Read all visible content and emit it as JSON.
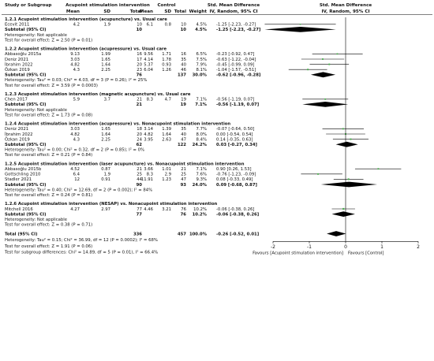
{
  "chart_data": {
    "type": "forest",
    "header": {
      "col_study": "Study or Subgroup",
      "group1": "Acupoint stimulation intervention",
      "group2": "Control",
      "mean": "Mean",
      "sd": "SD",
      "total": "Total",
      "weight": "Weight",
      "effect_title": "Std. Mean Difference",
      "effect_method": "IV, Random, 95% CI",
      "plot_title": "Std. Mean Difference",
      "plot_method": "IV, Random, 95% CI"
    },
    "subgroups": [
      {
        "title": "1.2.1 Acupoint stimulation intervention (acupuncture) vs. Usual care",
        "studies": [
          {
            "name": "Ecevit 2011",
            "m1": "4.2",
            "sd1": "1.9",
            "n1": "10",
            "m2": "6.1",
            "sd2": "0.8",
            "n2": "10",
            "weight": "4.5%",
            "ci": "-1.25 [-2.23, -0.27]",
            "est": -1.25,
            "lo": -2.23,
            "hi": -0.27,
            "w": 4.5
          }
        ],
        "subtotal": {
          "label": "Subtotal (95% CI)",
          "n1": "10",
          "n2": "10",
          "weight": "4.5%",
          "ci": "-1.25 [-2.23, -0.27]",
          "est": -1.25,
          "lo": -2.23,
          "hi": -0.27
        },
        "heterogeneity": "Heterogeneity: Not applicable",
        "overall": "Test for overall effect: Z = 2.50 (P = 0.01)"
      },
      {
        "title": "1.2.2 Acupoint stimulation intervention (acupressure) vs. Usual care",
        "studies": [
          {
            "name": "Abbasoğlu 2015a",
            "m1": "9.13",
            "sd1": "1.99",
            "n1": "16",
            "m2": "9.56",
            "sd2": "1.71",
            "n2": "16",
            "weight": "6.5%",
            "ci": "-0.23 [-0.92, 0.47]",
            "est": -0.23,
            "lo": -0.92,
            "hi": 0.47,
            "w": 6.5
          },
          {
            "name": "Deniz 2021",
            "m1": "3.03",
            "sd1": "1.65",
            "n1": "17",
            "m2": "4.14",
            "sd2": "1.78",
            "n2": "35",
            "weight": "7.5%",
            "ci": "-0.63 [-1.22, -0.04]",
            "est": -0.63,
            "lo": -1.22,
            "hi": -0.04,
            "w": 7.5
          },
          {
            "name": "İbrahim 2022",
            "m1": "4.82",
            "sd1": "1.64",
            "n1": "20",
            "m2": "5.37",
            "sd2": "0.93",
            "n2": "40",
            "weight": "7.9%",
            "ci": "-0.45 [-0.99, 0.09]",
            "est": -0.45,
            "lo": -0.99,
            "hi": 0.09,
            "w": 7.9
          },
          {
            "name": "Özkan 2019",
            "m1": "4.3",
            "sd1": "2.25",
            "n1": "23",
            "m2": "6.04",
            "sd2": "1.26",
            "n2": "46",
            "weight": "8.1%",
            "ci": "-1.04 [-1.57, -0.51]",
            "est": -1.04,
            "lo": -1.57,
            "hi": -0.51,
            "w": 8.1
          }
        ],
        "subtotal": {
          "label": "Subtotal (95% CI)",
          "n1": "76",
          "n2": "137",
          "weight": "30.0%",
          "ci": "-0.62 [-0.96, -0.28]",
          "est": -0.62,
          "lo": -0.96,
          "hi": -0.28
        },
        "heterogeneity": "Heterogeneity: Tau² = 0.03; Chi² = 4.03, df = 3 (P = 0.26); I² = 25%",
        "overall": "Test for overall effect: Z = 3.59 (P = 0.0003)"
      },
      {
        "title": "1.2.3 Acupoint stimulation intervention (magnetic acupuncture) vs. Usual care",
        "studies": [
          {
            "name": "Chen 2017",
            "m1": "5.9",
            "sd1": "3.7",
            "n1": "21",
            "m2": "8.3",
            "sd2": "4.7",
            "n2": "19",
            "weight": "7.1%",
            "ci": "-0.56 [-1.19, 0.07]",
            "est": -0.56,
            "lo": -1.19,
            "hi": 0.07,
            "w": 7.1
          }
        ],
        "subtotal": {
          "label": "Subtotal (95% CI)",
          "n1": "21",
          "n2": "19",
          "weight": "7.1%",
          "ci": "-0.56 [-1.19, 0.07]",
          "est": -0.56,
          "lo": -1.19,
          "hi": 0.07
        },
        "heterogeneity": "Heterogeneity: Not applicable",
        "overall": "Test for overall effect: Z = 1.73 (P = 0.08)"
      },
      {
        "title": "1.2.4 Acupoint stimulation intervention (acupressure) vs. Nonacupoint stimulation intervention",
        "studies": [
          {
            "name": "Deniz 2021",
            "m1": "3.03",
            "sd1": "1.65",
            "n1": "18",
            "m2": "3.14",
            "sd2": "1.39",
            "n2": "35",
            "weight": "7.7%",
            "ci": "-0.07 [-0.64, 0.50]",
            "est": -0.07,
            "lo": -0.64,
            "hi": 0.5,
            "w": 7.7
          },
          {
            "name": "İbrahim 2022",
            "m1": "4.82",
            "sd1": "1.64",
            "n1": "20",
            "m2": "4.82",
            "sd2": "1.64",
            "n2": "40",
            "weight": "8.0%",
            "ci": "0.00 [-0.54, 0.54]",
            "est": 0.0,
            "lo": -0.54,
            "hi": 0.54,
            "w": 8.0
          },
          {
            "name": "Özkan 2019",
            "m1": "4.3",
            "sd1": "2.25",
            "n1": "24",
            "m2": "3.95",
            "sd2": "2.63",
            "n2": "47",
            "weight": "8.4%",
            "ci": "0.14 [-0.35, 0.63]",
            "est": 0.14,
            "lo": -0.35,
            "hi": 0.63,
            "w": 8.4
          }
        ],
        "subtotal": {
          "label": "Subtotal (95% CI)",
          "n1": "62",
          "n2": "122",
          "weight": "24.2%",
          "ci": "0.03 [-0.27, 0.34]",
          "est": 0.03,
          "lo": -0.27,
          "hi": 0.34
        },
        "heterogeneity": "Heterogeneity: Tau² = 0.00; Chi² = 0.32, df = 2 (P = 0.85); I² = 0%",
        "overall": "Test for overall effect: Z = 0.21 (P = 0.84)"
      },
      {
        "title": "1.2.5 Acupoint stimulation intervention (laser acupuncture) vs. Nonacupoint stimulation intervention",
        "studies": [
          {
            "name": "Abbasoğlu 2015b",
            "m1": "4.52",
            "sd1": "0.87",
            "n1": "21",
            "m2": "3.66",
            "sd2": "1.01",
            "n2": "21",
            "weight": "7.1%",
            "ci": "0.90 [0.26, 1.53]",
            "est": 0.9,
            "lo": 0.26,
            "hi": 1.53,
            "w": 7.1
          },
          {
            "name": "Gottschling 2010",
            "m1": "6.4",
            "sd1": "1.9",
            "n1": "25",
            "m2": "8.3",
            "sd2": "2.9",
            "n2": "25",
            "weight": "7.6%",
            "ci": "-0.76 [-1.23, -0.09]",
            "est": -0.76,
            "lo": -1.23,
            "hi": -0.09,
            "w": 7.6
          },
          {
            "name": "Stadler 2021",
            "m1": "12",
            "sd1": "0.91",
            "n1": "44",
            "m2": "11.91",
            "sd2": "1.23",
            "n2": "47",
            "weight": "9.3%",
            "ci": "0.08 [-0.33, 0.49]",
            "est": 0.08,
            "lo": -0.33,
            "hi": 0.49,
            "w": 9.3
          }
        ],
        "subtotal": {
          "label": "Subtotal (95% CI)",
          "n1": "90",
          "n2": "93",
          "weight": "24.0%",
          "ci": "0.09 [-0.68, 0.87]",
          "est": 0.09,
          "lo": -0.68,
          "hi": 0.87
        },
        "heterogeneity": "Heterogeneity: Tau² = 0.40; Chi² = 12.69, df = 2 (P = 0.002); I² = 84%",
        "overall": "Test for overall effect: Z = 0.24 (P = 0.81)"
      },
      {
        "title": "1.2.6 Acupoint stimulation intervention (NESAP) vs. Nonacupoint stimulation intervention",
        "studies": [
          {
            "name": "Mitchell 2016",
            "m1": "4.27",
            "sd1": "2.97",
            "n1": "77",
            "m2": "4.46",
            "sd2": "3.21",
            "n2": "76",
            "weight": "10.2%",
            "ci": "-0.06 [-0.38, 0.26]",
            "est": -0.06,
            "lo": -0.38,
            "hi": 0.26,
            "w": 10.2
          }
        ],
        "subtotal": {
          "label": "Subtotal (95% CI)",
          "n1": "77",
          "n2": "76",
          "weight": "10.2%",
          "ci": "-0.06 [-0.38, 0.26]",
          "est": -0.06,
          "lo": -0.38,
          "hi": 0.26
        },
        "heterogeneity": "Heterogeneity: Not applicable",
        "overall": "Test for overall effect: Z = 0.38 (P = 0.71)"
      }
    ],
    "total": {
      "label": "Total (95% CI)",
      "n1": "336",
      "n2": "457",
      "weight": "100.0%",
      "ci": "-0.26 [-0.52, 0.01]",
      "est": -0.26,
      "lo": -0.52,
      "hi": 0.01
    },
    "footer": [
      "Heterogeneity: Tau² = 0.15; Chi² = 36.99, df = 12 (P = 0.0002); I² = 68%",
      "Test for overall effect: Z = 1.91 (P = 0.06)",
      "Test for subgroup differences: Chi² = 14.89, df = 5 (P = 0.01), I² = 66.4%"
    ],
    "axis": {
      "xlim": [
        -2,
        2
      ],
      "ticks": [
        "-2",
        "-1",
        "0",
        "1",
        "2"
      ],
      "tick_values": [
        -2,
        -1,
        0,
        1,
        2
      ]
    },
    "favours_left": "Favours [Acupoint stimulation intervention]",
    "favours_right": "Favours [Control]",
    "colors": {
      "square": "#4caf50",
      "diamond": "#000000",
      "line": "#000000"
    }
  }
}
